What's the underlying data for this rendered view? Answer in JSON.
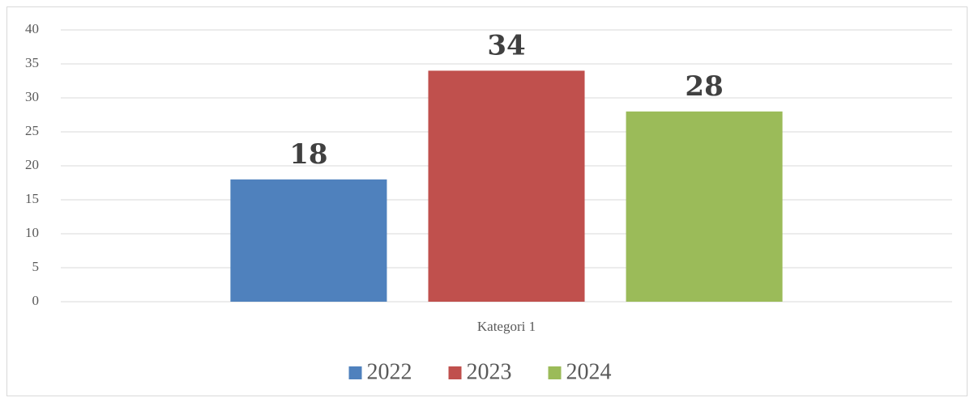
{
  "chart_data": {
    "type": "bar",
    "categories": [
      "Kategori 1"
    ],
    "series": [
      {
        "name": "2022",
        "color": "#4f81bd",
        "values": [
          18
        ]
      },
      {
        "name": "2023",
        "color": "#c0504d",
        "values": [
          34
        ]
      },
      {
        "name": "2024",
        "color": "#9bbb59",
        "values": [
          28
        ]
      }
    ],
    "ylim": [
      0,
      40
    ],
    "yticks": [
      0,
      5,
      10,
      15,
      20,
      25,
      30,
      35,
      40
    ],
    "grid": true,
    "legend": "bottom"
  }
}
